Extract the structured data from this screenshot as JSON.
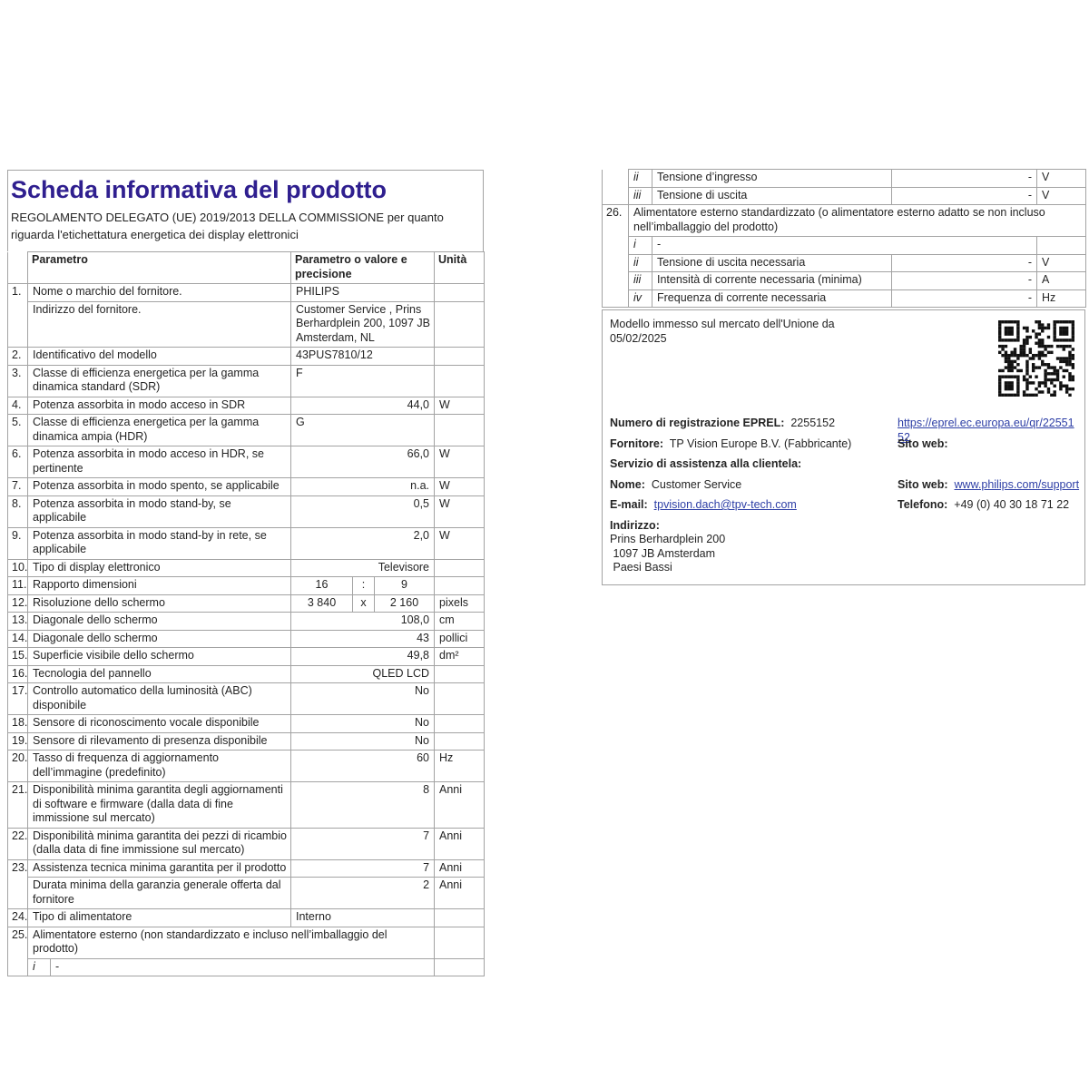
{
  "doc": {
    "title": "Scheda informativa del prodotto",
    "subtitle": "REGOLAMENTO DELEGATO (UE) 2019/2013 DELLA COMMISSIONE per quanto riguarda l'etichettatura energetica dei display elettronici"
  },
  "colors": {
    "title": "#2f1f8f",
    "link": "#2e3fa6",
    "border": "#a3a3a3",
    "text": "#242424",
    "qr": "#111111"
  },
  "left_table": {
    "headers": {
      "param": "Parametro",
      "value": "Parametro o valore e pre­cisione",
      "unit": "Unità"
    },
    "rows": [
      {
        "type": "normal",
        "num": "1.",
        "numRowspan": 2,
        "label": "Nome o marchio del fornitore.",
        "value": "PHILIPS",
        "unit": "",
        "align": "left"
      },
      {
        "type": "normal",
        "skipNum": true,
        "label": "Indirizzo del fornitore.",
        "value": "Customer Service , Prins Berhardplein 200, 1097 JB Amsterdam, NL",
        "unit": "",
        "align": "left"
      },
      {
        "type": "normal",
        "num": "2.",
        "label": "Identificativo del modello",
        "value": "43PUS7810/12",
        "unit": "",
        "align": "left"
      },
      {
        "type": "normal",
        "num": "3.",
        "label": "Classe di efficienza energetica per la gamma dinamica standard (SDR)",
        "value": "F",
        "unit": "",
        "align": "left"
      },
      {
        "type": "normal",
        "num": "4.",
        "label": "Potenza assorbita in modo acceso in SDR",
        "value": "44,0",
        "unit": "W",
        "align": "right"
      },
      {
        "type": "normal",
        "num": "5.",
        "label": "Classe di efficienza energetica per la gamma dinamica ampia (HDR)",
        "value": "G",
        "unit": "",
        "align": "left"
      },
      {
        "type": "normal",
        "num": "6.",
        "label": "Potenza assorbita in modo acceso in HDR, se pertinente",
        "value": "66,0",
        "unit": "W",
        "align": "right"
      },
      {
        "type": "normal",
        "num": "7.",
        "label": "Potenza assorbita in modo spento, se applicabile",
        "value": "n.a.",
        "unit": "W",
        "align": "right"
      },
      {
        "type": "normal",
        "num": "8.",
        "label": "Potenza assorbita in modo stand-by, se applicabile",
        "value": "0,5",
        "unit": "W",
        "align": "right"
      },
      {
        "type": "normal",
        "num": "9.",
        "label": "Potenza assorbita in modo stand-by in rete, se applicabile",
        "value": "2,0",
        "unit": "W",
        "align": "right"
      },
      {
        "type": "normal",
        "num": "10.",
        "label": "Tipo di display elettronico",
        "value": "Televisore",
        "unit": "",
        "align": "right"
      },
      {
        "type": "triple",
        "num": "11.",
        "label": "Rapporto dimensioni",
        "v1": "16",
        "v2": ":",
        "v3": "9",
        "unit": ""
      },
      {
        "type": "triple",
        "num": "12.",
        "label": "Risoluzione dello schermo",
        "v1": "3 840",
        "v2": "x",
        "v3": "2 160",
        "unit": "pixels"
      },
      {
        "type": "normal",
        "num": "13.",
        "label": "Diagonale dello schermo",
        "value": "108,0",
        "unit": "cm",
        "align": "right"
      },
      {
        "type": "normal",
        "num": "14.",
        "label": "Diagonale dello schermo",
        "value": "43",
        "unit": "pollici",
        "align": "right"
      },
      {
        "type": "normal",
        "num": "15.",
        "label": "Superficie visibile dello schermo",
        "value": "49,8",
        "unit": "dm²",
        "align": "right"
      },
      {
        "type": "normal",
        "num": "16.",
        "label": "Tecnologia del pannello",
        "value": "QLED LCD",
        "unit": "",
        "align": "right"
      },
      {
        "type": "normal",
        "num": "17.",
        "label": "Controllo automatico della luminosità (ABC) disponibile",
        "value": "No",
        "unit": "",
        "align": "right"
      },
      {
        "type": "normal",
        "num": "18.",
        "label": "Sensore di riconoscimento vocale disponibile",
        "value": "No",
        "unit": "",
        "align": "right"
      },
      {
        "type": "normal",
        "num": "19.",
        "label": "Sensore di rilevamento di presenza disponibile",
        "value": "No",
        "unit": "",
        "align": "right"
      },
      {
        "type": "normal",
        "num": "20.",
        "label": "Tasso di frequenza di aggiornamento dell’immagine (predefinito)",
        "value": "60",
        "unit": "Hz",
        "align": "right"
      },
      {
        "type": "normal",
        "num": "21.",
        "label": "Disponibilità minima garantita degli aggiornamenti di software e firmware (dalla data di fine immissione sul mercato)",
        "value": "8",
        "unit": "Anni",
        "align": "right"
      },
      {
        "type": "normal",
        "num": "22.",
        "label": "Disponibilità minima garantita dei pezzi di ricambio (dalla data di fine immissione sul mercato)",
        "value": "7",
        "unit": "Anni",
        "align": "right"
      },
      {
        "type": "normal",
        "num": "23.",
        "numRowspan": 2,
        "label": "Assistenza tecnica minima garantita per il prodotto",
        "value": "7",
        "unit": "Anni",
        "align": "right"
      },
      {
        "type": "normal",
        "skipNum": true,
        "label": "Durata minima della garanzia generale offerta dal fornitore",
        "value": "2",
        "unit": "Anni",
        "align": "right"
      },
      {
        "type": "normal",
        "num": "24.",
        "label": "Tipo di alimentatore",
        "value": "Interno",
        "unit": "",
        "align": "left"
      },
      {
        "type": "span",
        "num": "25.",
        "numRowspan": 2,
        "label": "Alimentatore esterno (non standardizzato e incluso nell’imballaggio del prodotto)",
        "unit": ""
      },
      {
        "type": "subdash",
        "skipNum": true,
        "sub": "i",
        "value": "-",
        "unit": ""
      }
    ]
  },
  "right_table": {
    "rows": [
      {
        "type": "subrow",
        "num": "",
        "numRowspan": 2,
        "noTopNum": true,
        "sub": "ii",
        "label": "Tensione d’ingresso",
        "value": "-",
        "unit": "V"
      },
      {
        "type": "subrow",
        "skipNum": true,
        "sub": "iii",
        "label": "Tensione di uscita",
        "value": "-",
        "unit": "V"
      },
      {
        "type": "spanfull",
        "num": "26.",
        "numRowspan": 5,
        "label": "Alimentatore esterno standardizzato (o alimentatore esterno adatto se non incluso nell’imballaggio del prodotto)"
      },
      {
        "type": "subdash",
        "skipNum": true,
        "sub": "i",
        "value": "-",
        "unit": ""
      },
      {
        "type": "subrow",
        "skipNum": true,
        "sub": "ii",
        "label": "Tensione di uscita necessaria",
        "value": "-",
        "unit": "V"
      },
      {
        "type": "subrow",
        "skipNum": true,
        "sub": "iii",
        "label": "Intensità di corrente necessaria (minima)",
        "value": "-",
        "unit": "A"
      },
      {
        "type": "subrow",
        "skipNum": true,
        "sub": "iv",
        "label": "Frequenza di corrente necessaria",
        "value": "-",
        "unit": "Hz"
      }
    ]
  },
  "info_box": {
    "qr_icon": "qr-code",
    "rows": [
      {
        "name": "model-date-row",
        "first": true,
        "left_text": "Modello immesso sul mercato dell'Unione da 05/02/2025"
      },
      {
        "name": "eprel-row",
        "gap": true,
        "left_label": "Numero di registrazione EPREL:",
        "left_text": "2255152",
        "right_link": "https://eprel.ec.europa.eu/qr/2255152",
        "right_link_name": "eprel-link"
      },
      {
        "name": "supplier-row",
        "left_label": "Fornitore:",
        "left_text": "TP Vision Europe B.V. (Fabbricante)",
        "right_label": "Sito web:"
      },
      {
        "name": "service-heading-row",
        "left_label": "Servizio di assistenza alla clientela:"
      },
      {
        "name": "name-row",
        "left_label": "Nome:",
        "left_text": "Customer Service",
        "right_label": "Sito web:",
        "right_link": "www.philips.com/support",
        "right_link_name": "philips-support-link"
      },
      {
        "name": "email-row",
        "left_label": "E-mail:",
        "left_link": "tpvision.dach@tpv-tech.com",
        "left_link_name": "email-link",
        "right_label": "Telefono:",
        "right_text": "+49 (0) 40 30 18 71 22"
      },
      {
        "name": "address-heading-row",
        "left_label": "Indirizzo:"
      }
    ],
    "address_lines": [
      "Prins Berhardplein 200",
      " 1097 JB Amsterdam",
      " Paesi Bassi"
    ]
  }
}
